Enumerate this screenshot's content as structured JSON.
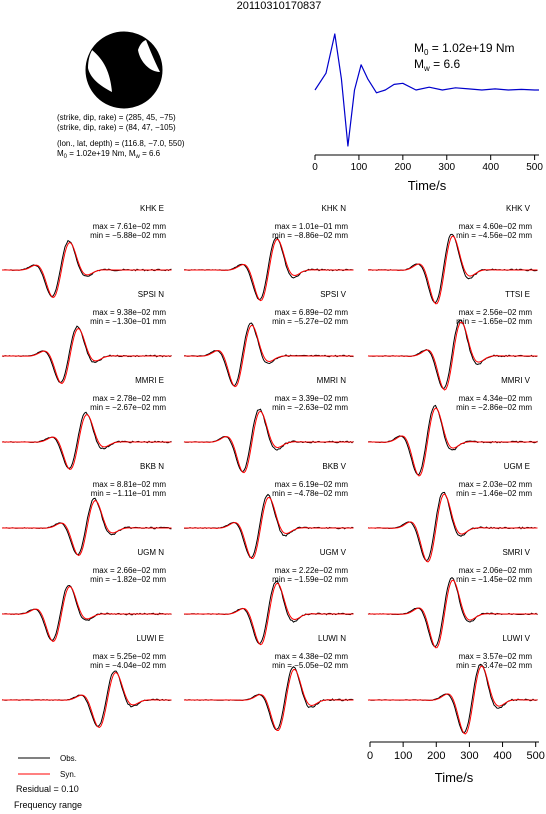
{
  "title": "20110310170837",
  "mechanism": {
    "plane1": "(strike, dip, rake) = (285, 45, −75)",
    "plane2": "(strike, dip, rake) = (84, 47, −105)",
    "location": "(lon., lat, depth) = (116.8, −7.0, 550)",
    "moment": "M",
    "moment_sub": "0",
    "moment_val": " = 1.02e+19 Nm, M",
    "moment_w": "w",
    "moment_mw": " = 6.6"
  },
  "stf": {
    "m0_label": "M",
    "m0_sub": "0",
    "m0_value": " = 1.02e+19 Nm",
    "mw_label": "M",
    "mw_sub": "w",
    "mw_value": " = 6.6",
    "xlabel": "Time/s",
    "xticks": [
      "0",
      "100",
      "200",
      "300",
      "400",
      "500"
    ]
  },
  "bottom_axis": {
    "xlabel": "Time/s",
    "xticks": [
      "0",
      "100",
      "200",
      "300",
      "400",
      "500"
    ]
  },
  "legend": {
    "obs": "Obs.",
    "syn": "Syn.",
    "residual": "Residual = 0.10",
    "freq": "Frequency range"
  },
  "colors": {
    "obs": "#000000",
    "syn": "#ff0000",
    "stf": "#0000cc"
  },
  "chart_data": {
    "type": "line",
    "stf": {
      "x": [
        0,
        25,
        45,
        60,
        75,
        90,
        105,
        120,
        140,
        160,
        180,
        200,
        230,
        260,
        290,
        320,
        350,
        380,
        410,
        440,
        470,
        500,
        510
      ],
      "y": [
        0.0,
        0.3,
        1.0,
        0.2,
        -1.0,
        0.0,
        0.45,
        0.2,
        -0.05,
        0.0,
        0.1,
        0.12,
        0.0,
        0.05,
        0.0,
        0.04,
        0.02,
        0.0,
        0.02,
        0.0,
        0.01,
        0.0,
        0.0
      ]
    },
    "stations": [
      {
        "name": "KHK E",
        "max": "max = 7.61e−02 mm",
        "min": "min = −5.88e−02 mm"
      },
      {
        "name": "KHK N",
        "max": "max = 1.01e−01 mm",
        "min": "min = −8.86e−02 mm"
      },
      {
        "name": "KHK V",
        "max": "max = 4.60e−02 mm",
        "min": "min = −4.56e−02 mm"
      },
      {
        "name": "SPSI N",
        "max": "max = 9.38e−02 mm",
        "min": "min = −1.30e−01 mm"
      },
      {
        "name": "SPSI V",
        "max": "max = 6.89e−02 mm",
        "min": "min = −5.27e−02 mm"
      },
      {
        "name": "TTSI E",
        "max": "max = 2.56e−02 mm",
        "min": "min = −1.65e−02 mm"
      },
      {
        "name": "MMRI E",
        "max": "max = 2.78e−02 mm",
        "min": "min = −2.67e−02 mm"
      },
      {
        "name": "MMRI N",
        "max": "max = 3.39e−02 mm",
        "min": "min = −2.63e−02 mm"
      },
      {
        "name": "MMRI V",
        "max": "max = 4.34e−02 mm",
        "min": "min = −2.86e−02 mm"
      },
      {
        "name": "BKB N",
        "max": "max = 8.81e−02 mm",
        "min": "min = −1.11e−01 mm"
      },
      {
        "name": "BKB V",
        "max": "max = 6.19e−02 mm",
        "min": "min = −4.78e−02 mm"
      },
      {
        "name": "UGM E",
        "max": "max = 2.03e−02 mm",
        "min": "min = −1.46e−02 mm"
      },
      {
        "name": "UGM N",
        "max": "max = 2.66e−02 mm",
        "min": "min = −1.82e−02 mm"
      },
      {
        "name": "UGM V",
        "max": "max = 2.22e−02 mm",
        "min": "min = −1.59e−02 mm"
      },
      {
        "name": "SMRI V",
        "max": "max = 2.06e−02 mm",
        "min": "min = −1.45e−02 mm"
      },
      {
        "name": "LUWI E",
        "max": "max = 5.25e−02 mm",
        "min": "min = −4.04e−02 mm"
      },
      {
        "name": "LUWI N",
        "max": "max = 4.38e−02 mm",
        "min": "min = −5.05e−02 mm"
      },
      {
        "name": "LUWI V",
        "max": "max = 3.57e−02 mm",
        "min": "min = −3.47e−02 mm"
      }
    ]
  }
}
